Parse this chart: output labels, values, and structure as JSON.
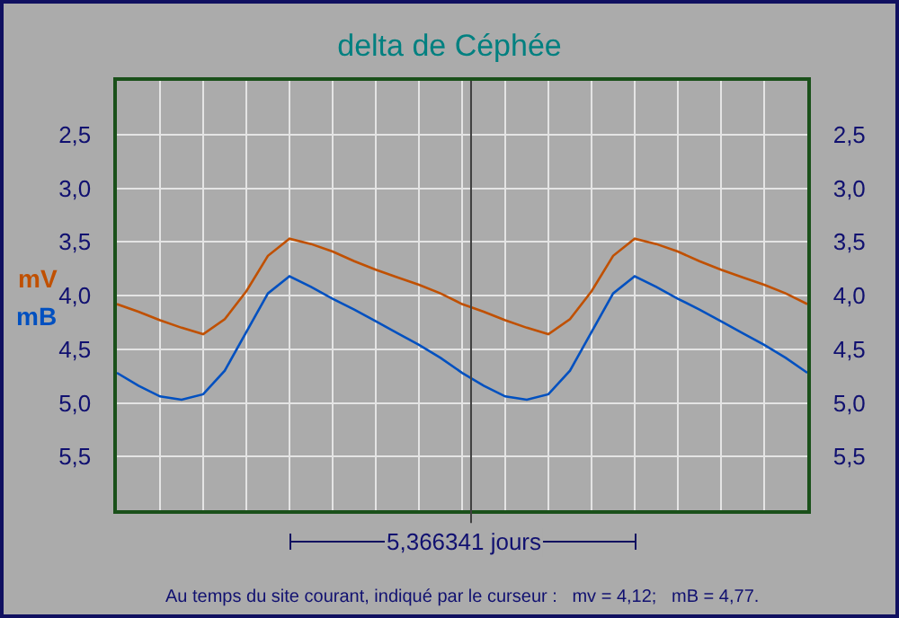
{
  "chart_data": {
    "type": "line",
    "title": "delta de Céphée",
    "categories": [
      null,
      null,
      null,
      null,
      null,
      null,
      null,
      null,
      null,
      null,
      null,
      null,
      null,
      null,
      null,
      null,
      null,
      null,
      null,
      null,
      null,
      null,
      null,
      null,
      null,
      null,
      null,
      null,
      null,
      null,
      null,
      null,
      null
    ],
    "series": [
      {
        "name": "mV",
        "color": "#c05000",
        "values": [
          4.08,
          4.15,
          4.23,
          4.3,
          4.36,
          4.22,
          3.96,
          3.63,
          3.47,
          3.52,
          3.59,
          3.68,
          3.76,
          3.83,
          3.9,
          3.98,
          4.08,
          4.15,
          4.23,
          4.3,
          4.36,
          4.22,
          3.96,
          3.63,
          3.47,
          3.52,
          3.59,
          3.68,
          3.76,
          3.83,
          3.9,
          3.98,
          4.08
        ]
      },
      {
        "name": "mB",
        "color": "#0050c0",
        "values": [
          4.72,
          4.84,
          4.94,
          4.97,
          4.92,
          4.7,
          4.34,
          3.98,
          3.82,
          3.92,
          4.03,
          4.13,
          4.24,
          4.35,
          4.46,
          4.58,
          4.72,
          4.84,
          4.94,
          4.97,
          4.92,
          4.7,
          4.34,
          3.98,
          3.82,
          3.92,
          4.03,
          4.13,
          4.24,
          4.35,
          4.46,
          4.58,
          4.72
        ]
      }
    ],
    "ylim": [
      6.0,
      2.0
    ],
    "yticks": [
      {
        "value": 2.5,
        "label": "2,5"
      },
      {
        "value": 3.0,
        "label": "3,0"
      },
      {
        "value": 3.5,
        "label": "3,5"
      },
      {
        "value": 4.0,
        "label": "4,0"
      },
      {
        "value": 4.5,
        "label": "4,5"
      },
      {
        "value": 5.0,
        "label": "5,0"
      },
      {
        "value": 5.5,
        "label": "5,5"
      }
    ],
    "y2lim": [
      6.0,
      2.0
    ],
    "y2ticks": [
      {
        "value": 2.5,
        "label": "2,5"
      },
      {
        "value": 3.0,
        "label": "3,0"
      },
      {
        "value": 3.5,
        "label": "3,5"
      },
      {
        "value": 4.0,
        "label": "4,0"
      },
      {
        "value": 4.5,
        "label": "4,5"
      },
      {
        "value": 5.0,
        "label": "5,0"
      },
      {
        "value": 5.5,
        "label": "5,5"
      }
    ],
    "annotations": [
      "5,366341 jours",
      "Au temps du site courant, indiqué par le curseur :   mv = 4,12;   mB = 4,77."
    ],
    "grid": true,
    "legend": false,
    "marker": "none",
    "line_style": "solid"
  }
}
